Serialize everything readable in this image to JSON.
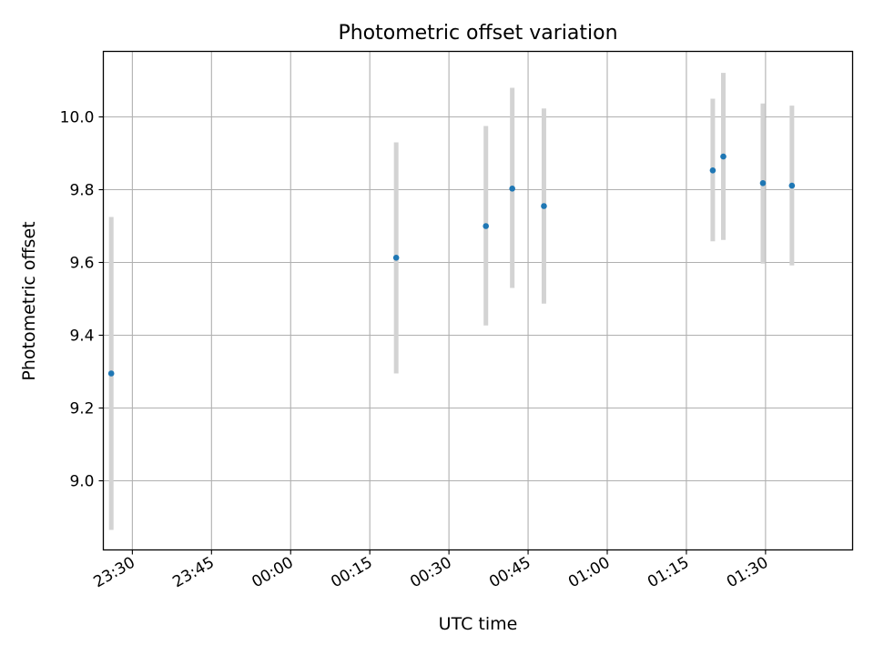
{
  "chart_data": {
    "type": "scatter",
    "title": "Photometric offset variation",
    "xlabel": "UTC time",
    "ylabel": "Photometric offset",
    "x_ticks": [
      "23:30",
      "23:45",
      "00:00",
      "00:15",
      "00:30",
      "00:45",
      "01:00",
      "01:15",
      "01:30"
    ],
    "y_ticks": [
      "9.0",
      "9.2",
      "9.4",
      "9.6",
      "9.8",
      "10.0"
    ],
    "xlim": [
      "23:24:30",
      "01:46:30"
    ],
    "ylim": [
      8.81,
      10.18
    ],
    "grid": true,
    "point_color": "#1f77b4",
    "errorbar_color": "#d3d3d3",
    "points": [
      {
        "time": "23:26",
        "y": 9.295,
        "y_low": 8.865,
        "y_high": 9.725
      },
      {
        "time": "00:20",
        "y": 9.613,
        "y_low": 9.295,
        "y_high": 9.93
      },
      {
        "time": "00:37",
        "y": 9.7,
        "y_low": 9.427,
        "y_high": 9.975
      },
      {
        "time": "00:42",
        "y": 9.803,
        "y_low": 9.53,
        "y_high": 10.08
      },
      {
        "time": "00:48",
        "y": 9.755,
        "y_low": 9.487,
        "y_high": 10.023
      },
      {
        "time": "01:20",
        "y": 9.853,
        "y_low": 9.658,
        "y_high": 10.05
      },
      {
        "time": "01:22",
        "y": 9.891,
        "y_low": 9.662,
        "y_high": 10.121
      },
      {
        "time": "01:29:30",
        "y": 9.818,
        "y_low": 9.597,
        "y_high": 10.037
      },
      {
        "time": "01:35",
        "y": 9.811,
        "y_low": 9.592,
        "y_high": 10.031
      }
    ]
  }
}
